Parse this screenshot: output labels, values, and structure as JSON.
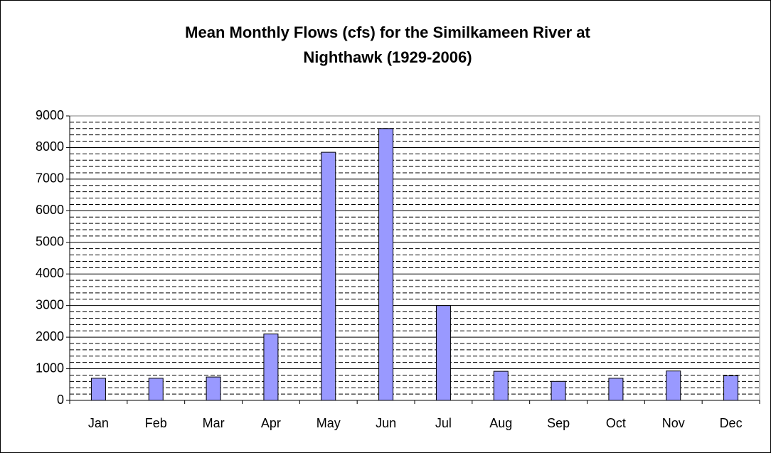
{
  "chart_data": {
    "type": "bar",
    "title": [
      "Mean Monthly Flows (cfs) for the Similkameen River at",
      "Nighthawk (1929-2006)"
    ],
    "categories": [
      "Jan",
      "Feb",
      "Mar",
      "Apr",
      "May",
      "Jun",
      "Jul",
      "Aug",
      "Sep",
      "Oct",
      "Nov",
      "Dec"
    ],
    "values": [
      700,
      700,
      740,
      2100,
      7850,
      8600,
      3000,
      920,
      600,
      700,
      930,
      780
    ],
    "color": "#9999ff",
    "ylim": [
      0,
      9000
    ],
    "yticks": [
      0,
      1000,
      2000,
      3000,
      4000,
      5000,
      6000,
      7000,
      8000,
      9000
    ],
    "minor_yticks": [
      200,
      400,
      600,
      800,
      1200,
      1400,
      1600,
      1800,
      2200,
      2400,
      2600,
      2800,
      3200,
      3400,
      3600,
      3800,
      4200,
      4400,
      4600,
      4800,
      5200,
      5400,
      5600,
      5800,
      6200,
      6400,
      6600,
      6800,
      7200,
      7400,
      7600,
      7800,
      8200,
      8400,
      8600,
      8800
    ],
    "grid": true
  }
}
